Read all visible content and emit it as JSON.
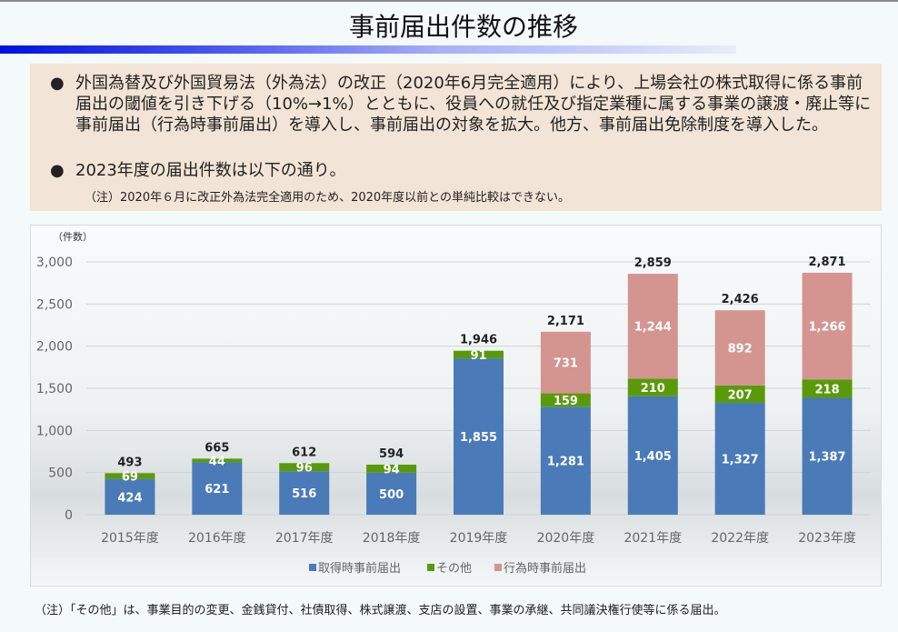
{
  "title": "事前届出件数の推移",
  "bullets": [
    "外国為替及び外国貿易法（外為法）の改正（2020年6月完全適用）により、上場会社の株式取得に係る事前届出の閾値を引き下げる（10%→1%）とともに、役員への就任及び指定業種に属する事業の譲渡・廃止等に事前届出（行為時事前届出）を導入し、事前届出の対象を拡大。他方、事前届出免除制度を導入した。",
    "2023年度の届出件数は以下の通り。"
  ],
  "bullet_symbol": "●",
  "note_top": "（注）2020年６月に改正外為法完全適用のため、2020年度以前との単純比較はできない。",
  "note_bottom": "（注）「その他」は、事業目的の変更、金銭貸付、社債取得、株式譲渡、支店の設置、事業の承継、共同議決権行使等に係る届出。",
  "chart_data": {
    "type": "bar",
    "stacked": true,
    "ylabel": "（件数）",
    "ylim": [
      0,
      3000
    ],
    "yticks": [
      0,
      500,
      1000,
      1500,
      2000,
      2500,
      3000
    ],
    "ytick_labels": [
      "0",
      "500",
      "1,000",
      "1,500",
      "2,000",
      "2,500",
      "3,000"
    ],
    "grid": true,
    "legend_position": "bottom",
    "categories": [
      "2015年度",
      "2016年度",
      "2017年度",
      "2018年度",
      "2019年度",
      "2020年度",
      "2021年度",
      "2022年度",
      "2023年度"
    ],
    "series": [
      {
        "name": "取得時事前届出",
        "color": "#4a7ab8",
        "values": [
          424,
          621,
          516,
          500,
          1855,
          1281,
          1405,
          1327,
          1387
        ],
        "labels": [
          "424",
          "621",
          "516",
          "500",
          "1,855",
          "1,281",
          "1,405",
          "1,327",
          "1,387"
        ]
      },
      {
        "name": "その他",
        "color": "#5a9a0a",
        "values": [
          69,
          44,
          96,
          94,
          91,
          159,
          210,
          207,
          218
        ],
        "labels": [
          "69",
          "44",
          "96",
          "94",
          "91",
          "159",
          "210",
          "207",
          "218"
        ]
      },
      {
        "name": "行為時事前届出",
        "color": "#d49490",
        "values": [
          0,
          0,
          0,
          0,
          0,
          731,
          1244,
          892,
          1266
        ],
        "labels": [
          "",
          "",
          "",
          "",
          "",
          "731",
          "1,244",
          "892",
          "1,266"
        ]
      }
    ],
    "totals": [
      493,
      665,
      612,
      594,
      1946,
      2171,
      2859,
      2426,
      2871
    ],
    "total_labels": [
      "493",
      "665",
      "612",
      "594",
      "1,946",
      "2,171",
      "2,859",
      "2,426",
      "2,871"
    ]
  }
}
